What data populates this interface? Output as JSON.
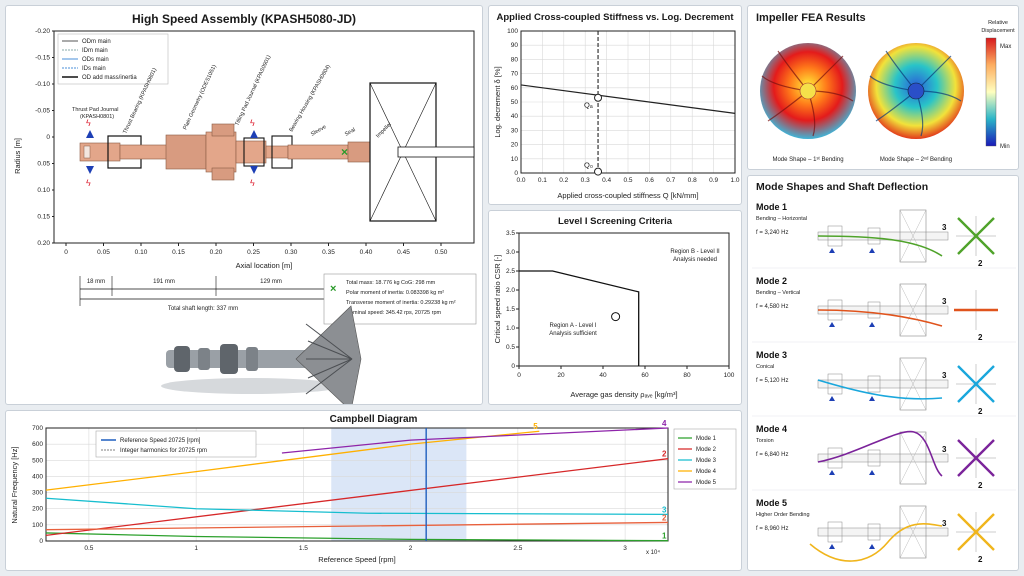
{
  "assembly": {
    "title": "High Speed Assembly (KPASH5080-JD)",
    "ylabel": "Radius [m]",
    "xlabel": "Axial location [m]",
    "yticks": [
      "-0.20",
      "-0.15",
      "-0.10",
      "-0.05",
      "0",
      "0.05",
      "0.10",
      "0.15",
      "0.20"
    ],
    "xticks": [
      "0",
      "0.05",
      "0.10",
      "0.15",
      "0.20",
      "0.25",
      "0.30",
      "0.35",
      "0.40",
      "0.45",
      "0.50"
    ],
    "legend": [
      "ODm main",
      "IDm main",
      "ODs main",
      "IDs main",
      "OD add mass/inertia"
    ],
    "components": [
      "Thrust Pad Journal (KPASH0801)",
      "Thrust Bearing (KPASH0801)",
      "Plain Geometry (ODES1051)",
      "Tilting Pad Journal (KPAS0901)",
      "Bearing Housing (KPASH0804)",
      "Sleeve",
      "Seal",
      "Impeller"
    ],
    "dims": {
      "d1": "18 mm",
      "d2": "191 mm",
      "d3": "129 mm",
      "total": "Total shaft length: 337 mm"
    },
    "info": [
      "Total mass: 18.776 kg  CoG: 298 mm",
      "Polar moment of inertia: 0.083398 kg m²",
      "Transverse moment of inertia: 0.29238 kg m²",
      "Nominal speed: 345.42 rps, 20725 rpm"
    ]
  },
  "stiffness": {
    "title": "Applied Cross-coupled Stiffness vs. Log. Decrement",
    "xlabel": "Applied cross-coupled stiffness Q [kN/mm]",
    "ylabel": "Log. decrement δ [%]",
    "qa": "Qₐ",
    "q0": "Q₀"
  },
  "screening": {
    "title": "Level I Screening Criteria",
    "xlabel": "Average gas density ρₐᵥₑ [kg/m³]",
    "ylabel": "Critical speed ratio CSR [-]",
    "regionA": [
      "Region A - Level I",
      "Analysis sufficient"
    ],
    "regionB": [
      "Region B - Level II",
      "Analysis needed"
    ]
  },
  "campbell": {
    "title": "Campbell Diagram",
    "xlabel": "Reference Speed [rpm]",
    "ylabel": "Natural Frequency [Hz]",
    "xexp": "x 10⁴",
    "legend_ref": [
      "Reference Speed 20725 [rpm]",
      "Integer harmonics for 20725 rpm"
    ],
    "modes": [
      "Mode 1",
      "Mode 2",
      "Mode 3",
      "Mode 4",
      "Mode 5"
    ]
  },
  "fea": {
    "title": "Impeller FEA Results",
    "cb_title": "Relative Displacement",
    "cb_max": "Max",
    "cb_min": "Min",
    "cap1": "Mode Shape – 1ˢᵗ Bending",
    "cap2": "Mode Shape – 2ⁿᵈ Bending"
  },
  "modeshapes": {
    "title": "Mode Shapes and Shaft Deflection",
    "modes": [
      {
        "name": "Mode 1",
        "desc": "Bending – Horizontal",
        "freq": "f = 3,240 Hz",
        "color": "#4fa32a"
      },
      {
        "name": "Mode 2",
        "desc": "Bending – Vertical",
        "freq": "f = 4,580 Hz",
        "color": "#e0531c"
      },
      {
        "name": "Mode 3",
        "desc": "Conical",
        "freq": "f = 5,120 Hz",
        "color": "#1aa7dc"
      },
      {
        "name": "Mode 4",
        "desc": "Torsion",
        "freq": "f = 6,840 Hz",
        "color": "#7b239a"
      },
      {
        "name": "Mode 5",
        "desc": "Higher Order Bending",
        "freq": "f = 8,960 Hz",
        "color": "#f0b51c"
      }
    ],
    "axis3": "3",
    "axis2": "2"
  },
  "chart_data": [
    {
      "type": "line",
      "title": "Applied Cross-coupled Stiffness vs. Log. Decrement",
      "xlabel": "Applied cross-coupled stiffness Q [kN/mm]",
      "ylabel": "Log. decrement δ [%]",
      "xlim": [
        0,
        1.0
      ],
      "ylim": [
        0,
        100
      ],
      "xticks": [
        "0.0",
        "0.1",
        "0.2",
        "0.3",
        "0.4",
        "0.5",
        "0.6",
        "0.7",
        "0.8",
        "0.9",
        "1.0"
      ],
      "yticks": [
        "0",
        "10",
        "20",
        "30",
        "40",
        "50",
        "60",
        "70",
        "80",
        "90",
        "100"
      ],
      "series": [
        {
          "x": [
            0.0,
            1.0
          ],
          "values": [
            62,
            42
          ]
        }
      ],
      "markers": [
        {
          "label": "Qₐ",
          "x": 0.36,
          "y": 53
        },
        {
          "label": "Q₀",
          "x": 0.36,
          "y": 1
        }
      ],
      "vline_x": 0.36
    },
    {
      "type": "line",
      "title": "Level I Screening Criteria",
      "xlabel": "Average gas density ρₐᵥₑ [kg/m³]",
      "ylabel": "Critical speed ratio CSR [-]",
      "xlim": [
        0,
        100
      ],
      "ylim": [
        0,
        3.5
      ],
      "xticks": [
        "0",
        "20",
        "40",
        "60",
        "80",
        "100"
      ],
      "yticks": [
        "0",
        "0.5",
        "1.0",
        "1.5",
        "2.0",
        "2.5",
        "3.0",
        "3.5"
      ],
      "boundary": {
        "x": [
          0,
          16,
          57,
          57
        ],
        "y": [
          2.5,
          2.5,
          1.95,
          0
        ]
      },
      "point": {
        "x": 46,
        "y": 1.3
      }
    },
    {
      "type": "line",
      "title": "Campbell Diagram",
      "xlabel": "Reference Speed [rpm]",
      "ylabel": "Natural Frequency [Hz]",
      "xlim": [
        3000,
        32000
      ],
      "ylim": [
        0,
        700
      ],
      "xticks": [
        "0.5",
        "1",
        "1.5",
        "2",
        "2.5",
        "3"
      ],
      "yticks": [
        "0",
        "100",
        "200",
        "300",
        "400",
        "500",
        "600",
        "700"
      ],
      "ref_speed": 20725,
      "band": [
        16300,
        22600
      ],
      "series": [
        {
          "name": "Mode 1",
          "color": "#2ca02c",
          "x": [
            3000,
            10000,
            20000,
            32000
          ],
          "values": [
            50,
            28,
            10,
            2
          ]
        },
        {
          "name": "Mode 2",
          "color": "#d62728",
          "x": [
            3000,
            32000
          ],
          "values": [
            35,
            510
          ]
        },
        {
          "name": "Mode 3",
          "color": "#17becf",
          "x": [
            3000,
            10000,
            18000,
            32000
          ],
          "values": [
            265,
            200,
            172,
            165
          ]
        },
        {
          "name": "Mode 4",
          "color": "#ffb000",
          "x": [
            3000,
            10000,
            20000,
            26000
          ],
          "values": [
            315,
            430,
            600,
            680
          ]
        },
        {
          "name": "Mode 5",
          "color": "#8e24aa",
          "x": [
            14000,
            20000,
            32000
          ],
          "values": [
            545,
            625,
            700
          ]
        },
        {
          "name": "2",
          "color": "#e8603c",
          "x": [
            3000,
            32000
          ],
          "values": [
            70,
            115
          ]
        }
      ]
    }
  ]
}
